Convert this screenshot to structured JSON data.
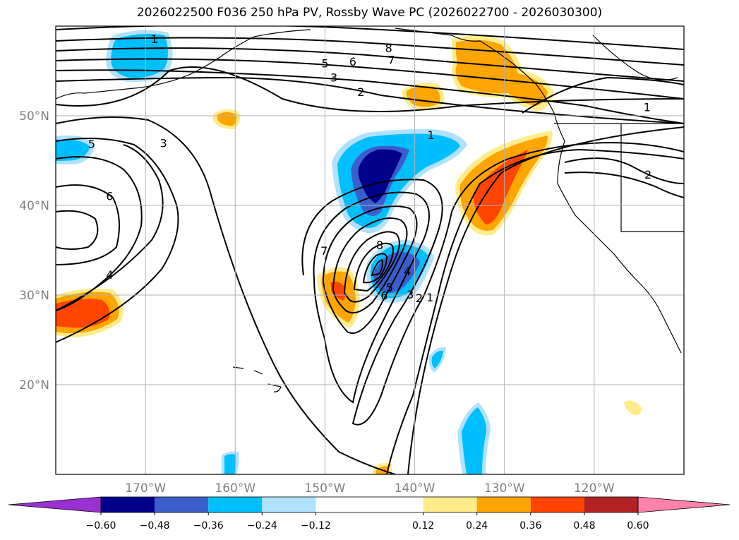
{
  "chart_data": {
    "type": "heatmap",
    "title": "2026022500 F036 250 hPa PV, Rossby Wave PC (2026022700 - 2026030300)",
    "projection": "lat-lon",
    "lon_range": [
      -180,
      -110
    ],
    "lat_range": [
      10,
      60
    ],
    "lon_ticks": [
      -170,
      -160,
      -150,
      -140,
      -130,
      -120
    ],
    "lon_tick_labels": [
      "170°W",
      "160°W",
      "150°W",
      "140°W",
      "130°W",
      "120°W"
    ],
    "lat_ticks": [
      20,
      30,
      40,
      50
    ],
    "lat_tick_labels": [
      "20°N",
      "30°N",
      "40°N",
      "50°N"
    ],
    "grid": true,
    "colorbar": {
      "orientation": "horizontal",
      "extend": "both",
      "levels": [
        -0.6,
        -0.48,
        -0.36,
        -0.24,
        -0.12,
        0.12,
        0.24,
        0.36,
        0.48,
        0.6
      ],
      "tick_labels": [
        "−0.60",
        "−0.48",
        "−0.36",
        "−0.24",
        "−0.12",
        "0.12",
        "0.24",
        "0.36",
        "0.48",
        "0.60"
      ],
      "colors": [
        "#9b30d0",
        "#00008b",
        "#3a5fcd",
        "#00bfff",
        "#b0e2ff",
        "#ffffff",
        "#ffec8b",
        "#ffa500",
        "#ff4500",
        "#b22222",
        "#ff82ab"
      ]
    },
    "contour_labels": [
      {
        "text": "8",
        "lon": -142.9,
        "lat": 57.5
      },
      {
        "text": "7",
        "lon": -142.6,
        "lat": 56.2
      },
      {
        "text": "6",
        "lon": -146.9,
        "lat": 56.0
      },
      {
        "text": "5",
        "lon": -150.0,
        "lat": 55.8
      },
      {
        "text": "3",
        "lon": -149.0,
        "lat": 54.2
      },
      {
        "text": "2",
        "lon": -146.0,
        "lat": 52.6
      },
      {
        "text": "1",
        "lon": -114.1,
        "lat": 50.9
      },
      {
        "text": "1",
        "lon": -138.2,
        "lat": 47.8
      },
      {
        "text": "5",
        "lon": -176.0,
        "lat": 46.8
      },
      {
        "text": "3",
        "lon": -168.0,
        "lat": 46.9
      },
      {
        "text": "2",
        "lon": -114.0,
        "lat": 43.4
      },
      {
        "text": "6",
        "lon": -174.0,
        "lat": 41.0
      },
      {
        "text": "4",
        "lon": -174.0,
        "lat": 32.2
      },
      {
        "text": "7",
        "lon": -150.1,
        "lat": 34.9
      },
      {
        "text": "8",
        "lon": -143.9,
        "lat": 35.5
      },
      {
        "text": "4",
        "lon": -140.8,
        "lat": 32.6
      },
      {
        "text": "6",
        "lon": -143.4,
        "lat": 29.9
      },
      {
        "text": "5",
        "lon": -142.8,
        "lat": 30.8
      },
      {
        "text": "3",
        "lon": -140.5,
        "lat": 30.0
      },
      {
        "text": "2",
        "lon": -139.5,
        "lat": 29.6
      },
      {
        "text": "1",
        "lon": -138.3,
        "lat": 29.7
      },
      {
        "text": "1",
        "lon": -169.0,
        "lat": 58.5
      }
    ]
  }
}
